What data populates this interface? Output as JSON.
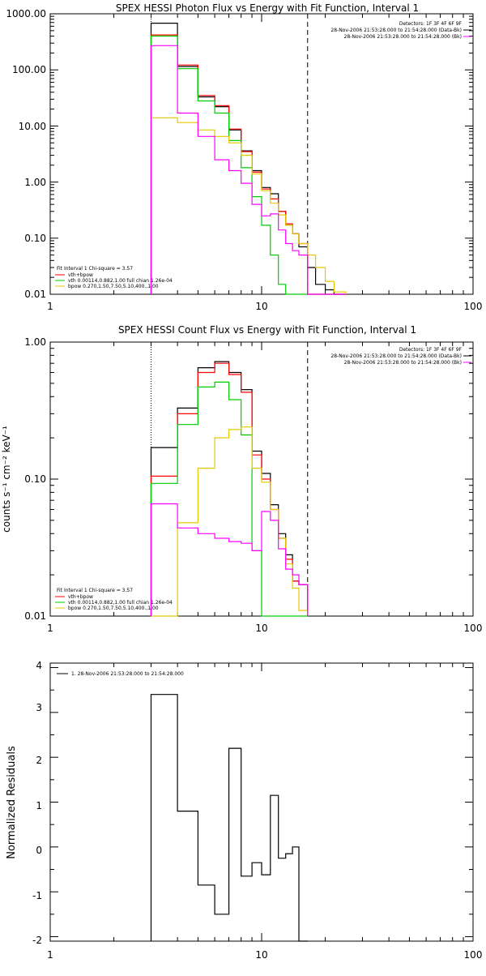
{
  "colors": {
    "total": "#000000",
    "fit": "#ff0000",
    "vth": "#00cc00",
    "bpow": "#e6c800",
    "bk": "#ff00ff"
  },
  "chart_data": [
    {
      "type": "line",
      "title": "SPEX HESSI Photon Flux vs Energy with Fit Function, Interval 1",
      "xscale": "log",
      "yscale": "log",
      "xlim": [
        1,
        100
      ],
      "ylim": [
        0.01,
        1000
      ],
      "xticks": [
        1,
        10,
        100
      ],
      "xtick_labels": [
        "1",
        "10",
        "100"
      ],
      "yticks": [
        0.01,
        0.1,
        1,
        10,
        100,
        1000
      ],
      "ytick_labels": [
        "0.01",
        "0.10",
        "1.00",
        "10.00",
        "100.00",
        "1000.00"
      ],
      "ylabel": "",
      "vlines": {
        "dotted": 3.0,
        "dashed": 16.5
      },
      "legend_right": [
        "Detectors: 1F 3F 4F 6F 9F",
        "28-Nov-2006 21:53:28.000 to 21:54:28.000 (Data-Bk)",
        "28-Nov-2006 21:53:28.000 to 21:54:28.000 (Bk)"
      ],
      "legend_left": [
        "Fit Interval 1   Chi-square = 3.57",
        "vth+bpow",
        "vth 0.00114,0.882,1.00  full chian 1.26e-04",
        "bpow 0.270,1.50,7.50,5.10,400.,1.00"
      ],
      "edges": [
        3.0,
        4.0,
        5.0,
        6.0,
        7.0,
        8.0,
        9.0,
        10.0,
        11.0,
        12.0,
        13.0,
        14.0,
        15.0,
        16.5,
        18.0,
        20.0,
        22.0,
        25.0
      ],
      "series": [
        {
          "name": "Data-Bk",
          "values": [
            680,
            115,
            33,
            22,
            8.5,
            3.6,
            1.6,
            0.8,
            0.62,
            0.3,
            0.17,
            0.12,
            0.07,
            0.03,
            0.015,
            0.012,
            0.0
          ]
        },
        {
          "name": "vth+bpow",
          "values": [
            420,
            122,
            35,
            23,
            8.8,
            3.5,
            1.5,
            0.75,
            0.5,
            0.3,
            0.18,
            0.12,
            0.08,
            0.0,
            0.0,
            0.0,
            0.0
          ]
        },
        {
          "name": "vth",
          "values": [
            400,
            105,
            28,
            17,
            5.5,
            1.8,
            0.55,
            0.17,
            0.05,
            0.015,
            0.0,
            0.0,
            0.0,
            0.0,
            0.0,
            0.0,
            0.0
          ]
        },
        {
          "name": "bpow",
          "values": [
            14,
            11.5,
            8.5,
            6.5,
            5.0,
            3.0,
            1.4,
            0.7,
            0.42,
            0.26,
            0.17,
            0.12,
            0.08,
            0.05,
            0.03,
            0.017,
            0.011
          ]
        },
        {
          "name": "Bk",
          "values": [
            270,
            17,
            6.5,
            2.5,
            1.6,
            0.95,
            0.4,
            0.25,
            0.27,
            0.14,
            0.08,
            0.06,
            0.05,
            0.0,
            0.0,
            0.0,
            0.0
          ]
        }
      ]
    },
    {
      "type": "line",
      "title": "SPEX HESSI Count Flux vs Energy with Fit Function, Interval 1",
      "xscale": "log",
      "yscale": "log",
      "xlim": [
        1,
        100
      ],
      "ylim": [
        0.01,
        1.0
      ],
      "xticks": [
        1,
        10,
        100
      ],
      "xtick_labels": [
        "1",
        "10",
        "100"
      ],
      "yticks": [
        0.01,
        0.1,
        1.0
      ],
      "ytick_labels": [
        "0.01",
        "0.10",
        "1.00"
      ],
      "ylabel": "counts s⁻¹ cm⁻² keV⁻¹",
      "vlines": {
        "dotted": 3.0,
        "dashed": 16.5
      },
      "legend_right": [
        "Detectors: 1F 3F 4F 6F 9F",
        "28-Nov-2006 21:53:28.000 to 21:54:28.000 (Data-Bk)",
        "28-Nov-2006 21:53:28.000 to 21:54:28.000 (Bk)"
      ],
      "legend_left": [
        "Fit Interval 1   Chi-square = 3.57",
        "vth+bpow",
        "vth 0.00114,0.882,1.00  full chian 1.26e-04",
        "bpow 0.270,1.50,7.50,5.10,400.,1.00"
      ],
      "edges": [
        3.0,
        4.0,
        5.0,
        6.0,
        7.0,
        8.0,
        9.0,
        10.0,
        11.0,
        12.0,
        13.0,
        14.0,
        15.0,
        16.5
      ],
      "series": [
        {
          "name": "Data-Bk",
          "values": [
            0.17,
            0.33,
            0.65,
            0.72,
            0.6,
            0.45,
            0.16,
            0.11,
            0.065,
            0.04,
            0.028,
            0.018,
            0.017
          ]
        },
        {
          "name": "vth+bpow",
          "values": [
            0.105,
            0.3,
            0.6,
            0.7,
            0.58,
            0.43,
            0.15,
            0.1,
            0.06,
            0.037,
            0.026,
            0.018,
            0.017
          ]
        },
        {
          "name": "vth",
          "values": [
            0.093,
            0.25,
            0.47,
            0.51,
            0.38,
            0.21,
            0.03,
            0.009,
            0.0,
            0.0,
            0.0,
            0.0,
            0.0
          ]
        },
        {
          "name": "bpow",
          "values": [
            0.009,
            0.048,
            0.12,
            0.2,
            0.23,
            0.24,
            0.12,
            0.095,
            0.06,
            0.037,
            0.024,
            0.016,
            0.011
          ]
        },
        {
          "name": "Bk",
          "values": [
            0.066,
            0.044,
            0.04,
            0.037,
            0.035,
            0.034,
            0.03,
            0.058,
            0.05,
            0.031,
            0.022,
            0.02,
            0.017
          ]
        }
      ]
    },
    {
      "type": "line",
      "title": "",
      "xscale": "log",
      "yscale": "linear",
      "xlim": [
        1,
        100
      ],
      "ylim": [
        -2.1,
        4.1
      ],
      "xticks": [
        1,
        10,
        100
      ],
      "xtick_labels": [
        "1",
        "10",
        "100"
      ],
      "yticks": [
        -2,
        -1,
        0,
        1,
        2,
        3,
        4
      ],
      "ytick_labels": [
        "-2",
        "-1",
        "0",
        "1",
        "2",
        "3",
        "4"
      ],
      "ylabel": "Normalized Residuals",
      "legend_left": [
        "1. 28-Nov-2006 21:53:28.000 to 21:54:28.000"
      ],
      "edges": [
        3.0,
        4.0,
        5.0,
        6.0,
        7.0,
        8.0,
        9.0,
        10.0,
        11.0,
        12.0,
        13.0,
        14.0,
        15.0,
        16.5
      ],
      "series": [
        {
          "name": "1. 28-Nov-2006 21:53:28.000 to 21:54:28.000",
          "values": [
            3.4,
            0.8,
            -0.85,
            -1.5,
            2.2,
            -0.65,
            -0.35,
            -0.62,
            1.15,
            -0.25,
            -0.15,
            0.0,
            -2.1
          ]
        }
      ]
    }
  ]
}
